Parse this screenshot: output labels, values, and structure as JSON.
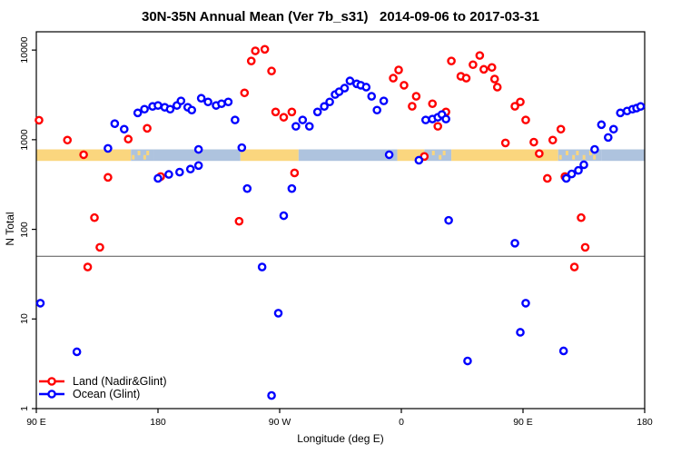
{
  "title": "30N-35N Annual Mean (Ver 7b_s31)   2014-09-06 to 2017-03-31",
  "chart_data": {
    "type": "scatter",
    "title": "30N-35N Annual Mean (Ver 7b_s31)   2014-09-06 to 2017-03-31",
    "xlabel": "Longitude (deg E)",
    "ylabel": "N Total",
    "x_axis": {
      "note": "longitude axis wraps 450 degrees starting at 90E",
      "range": [
        0,
        450
      ],
      "ticks": [
        {
          "pos": 0,
          "label": "90 E"
        },
        {
          "pos": 90,
          "label": "180"
        },
        {
          "pos": 180,
          "label": "90 W"
        },
        {
          "pos": 270,
          "label": "0"
        },
        {
          "pos": 360,
          "label": "90 E"
        },
        {
          "pos": 450,
          "label": "180"
        }
      ]
    },
    "y_axis": {
      "scale": "log10",
      "range": [
        1,
        16000
      ],
      "ticks": [
        "1",
        "10",
        "100",
        "1000",
        "10000"
      ],
      "grid": false
    },
    "reference_line": {
      "value": 50,
      "color": "#555555"
    },
    "map_strip": {
      "value_low": 580,
      "value_high": 780,
      "land_color": "#FAD67E",
      "ocean_color": "#AEC3DE",
      "segments": [
        {
          "from": 0,
          "to": 70,
          "type": "land"
        },
        {
          "from": 70,
          "to": 87,
          "type": "mixed"
        },
        {
          "from": 87,
          "to": 151,
          "type": "ocean"
        },
        {
          "from": 151,
          "to": 194,
          "type": "land"
        },
        {
          "from": 194,
          "to": 267,
          "type": "ocean"
        },
        {
          "from": 267,
          "to": 287,
          "type": "land"
        },
        {
          "from": 287,
          "to": 307,
          "type": "mixed"
        },
        {
          "from": 307,
          "to": 386,
          "type": "land"
        },
        {
          "from": 386,
          "to": 418,
          "type": "mixed"
        },
        {
          "from": 418,
          "to": 450,
          "type": "ocean"
        }
      ]
    },
    "legend": {
      "position": "bottom-left"
    },
    "series": [
      {
        "name": "Land (Nadir&Glint)",
        "color": "#FF0000",
        "points": [
          [
            2,
            1650
          ],
          [
            23,
            990
          ],
          [
            35,
            680
          ],
          [
            38,
            38
          ],
          [
            43,
            135
          ],
          [
            47,
            63
          ],
          [
            53,
            380
          ],
          [
            68,
            1015
          ],
          [
            82,
            1340
          ],
          [
            92,
            388
          ],
          [
            150,
            123
          ],
          [
            154,
            3330
          ],
          [
            159,
            7550
          ],
          [
            162,
            9800
          ],
          [
            169,
            10200
          ],
          [
            174,
            5840
          ],
          [
            177,
            2040
          ],
          [
            183,
            1780
          ],
          [
            189,
            2040
          ],
          [
            191,
            426
          ],
          [
            264,
            4860
          ],
          [
            268,
            6000
          ],
          [
            272,
            4050
          ],
          [
            278,
            2360
          ],
          [
            281,
            3050
          ],
          [
            287,
            650
          ],
          [
            293,
            2520
          ],
          [
            297,
            1410
          ],
          [
            303,
            2040
          ],
          [
            307,
            7550
          ],
          [
            314,
            5100
          ],
          [
            318,
            4860
          ],
          [
            323,
            6870
          ],
          [
            328,
            8700
          ],
          [
            331,
            6100
          ],
          [
            337,
            6400
          ],
          [
            339,
            4750
          ],
          [
            341,
            3860
          ],
          [
            347,
            920
          ],
          [
            354,
            2360
          ],
          [
            358,
            2640
          ],
          [
            362,
            1660
          ],
          [
            368,
            940
          ],
          [
            372,
            700
          ],
          [
            378,
            370
          ],
          [
            382,
            990
          ],
          [
            388,
            1310
          ],
          [
            391,
            388
          ],
          [
            398,
            38
          ],
          [
            403,
            135
          ],
          [
            406,
            63
          ]
        ]
      },
      {
        "name": "Ocean (Glint)",
        "color": "#0000FF",
        "points": [
          [
            3,
            15
          ],
          [
            30,
            4.3
          ],
          [
            53,
            800
          ],
          [
            58,
            1510
          ],
          [
            65,
            1310
          ],
          [
            75,
            1990
          ],
          [
            80,
            2190
          ],
          [
            86,
            2350
          ],
          [
            90,
            2410
          ],
          [
            95,
            2300
          ],
          [
            99,
            2190
          ],
          [
            104,
            2410
          ],
          [
            107,
            2710
          ],
          [
            112,
            2300
          ],
          [
            90,
            370
          ],
          [
            98,
            410
          ],
          [
            106,
            435
          ],
          [
            114,
            470
          ],
          [
            120,
            515
          ],
          [
            120,
            780
          ],
          [
            115,
            2140
          ],
          [
            122,
            2900
          ],
          [
            127,
            2640
          ],
          [
            133,
            2410
          ],
          [
            137,
            2520
          ],
          [
            142,
            2640
          ],
          [
            147,
            1660
          ],
          [
            152,
            815
          ],
          [
            156,
            285
          ],
          [
            167,
            38
          ],
          [
            174,
            1.4
          ],
          [
            179,
            11.6
          ],
          [
            183,
            142
          ],
          [
            189,
            285
          ],
          [
            192,
            1410
          ],
          [
            197,
            1660
          ],
          [
            202,
            1410
          ],
          [
            208,
            2040
          ],
          [
            213,
            2350
          ],
          [
            217,
            2640
          ],
          [
            221,
            3190
          ],
          [
            224,
            3430
          ],
          [
            228,
            3760
          ],
          [
            232,
            4530
          ],
          [
            237,
            4200
          ],
          [
            240,
            4050
          ],
          [
            244,
            3860
          ],
          [
            248,
            3050
          ],
          [
            252,
            2140
          ],
          [
            257,
            2710
          ],
          [
            261,
            680
          ],
          [
            283,
            590
          ],
          [
            288,
            1660
          ],
          [
            293,
            1700
          ],
          [
            297,
            1780
          ],
          [
            300,
            1910
          ],
          [
            303,
            1700
          ],
          [
            305,
            126
          ],
          [
            319,
            3.4
          ],
          [
            354,
            70
          ],
          [
            358,
            7.1
          ],
          [
            362,
            15
          ],
          [
            390,
            4.4
          ],
          [
            392,
            370
          ],
          [
            396,
            415
          ],
          [
            401,
            455
          ],
          [
            405,
            525
          ],
          [
            413,
            780
          ],
          [
            418,
            1470
          ],
          [
            423,
            1060
          ],
          [
            427,
            1310
          ],
          [
            432,
            1990
          ],
          [
            437,
            2090
          ],
          [
            441,
            2190
          ],
          [
            444,
            2250
          ],
          [
            447,
            2350
          ]
        ]
      }
    ]
  }
}
